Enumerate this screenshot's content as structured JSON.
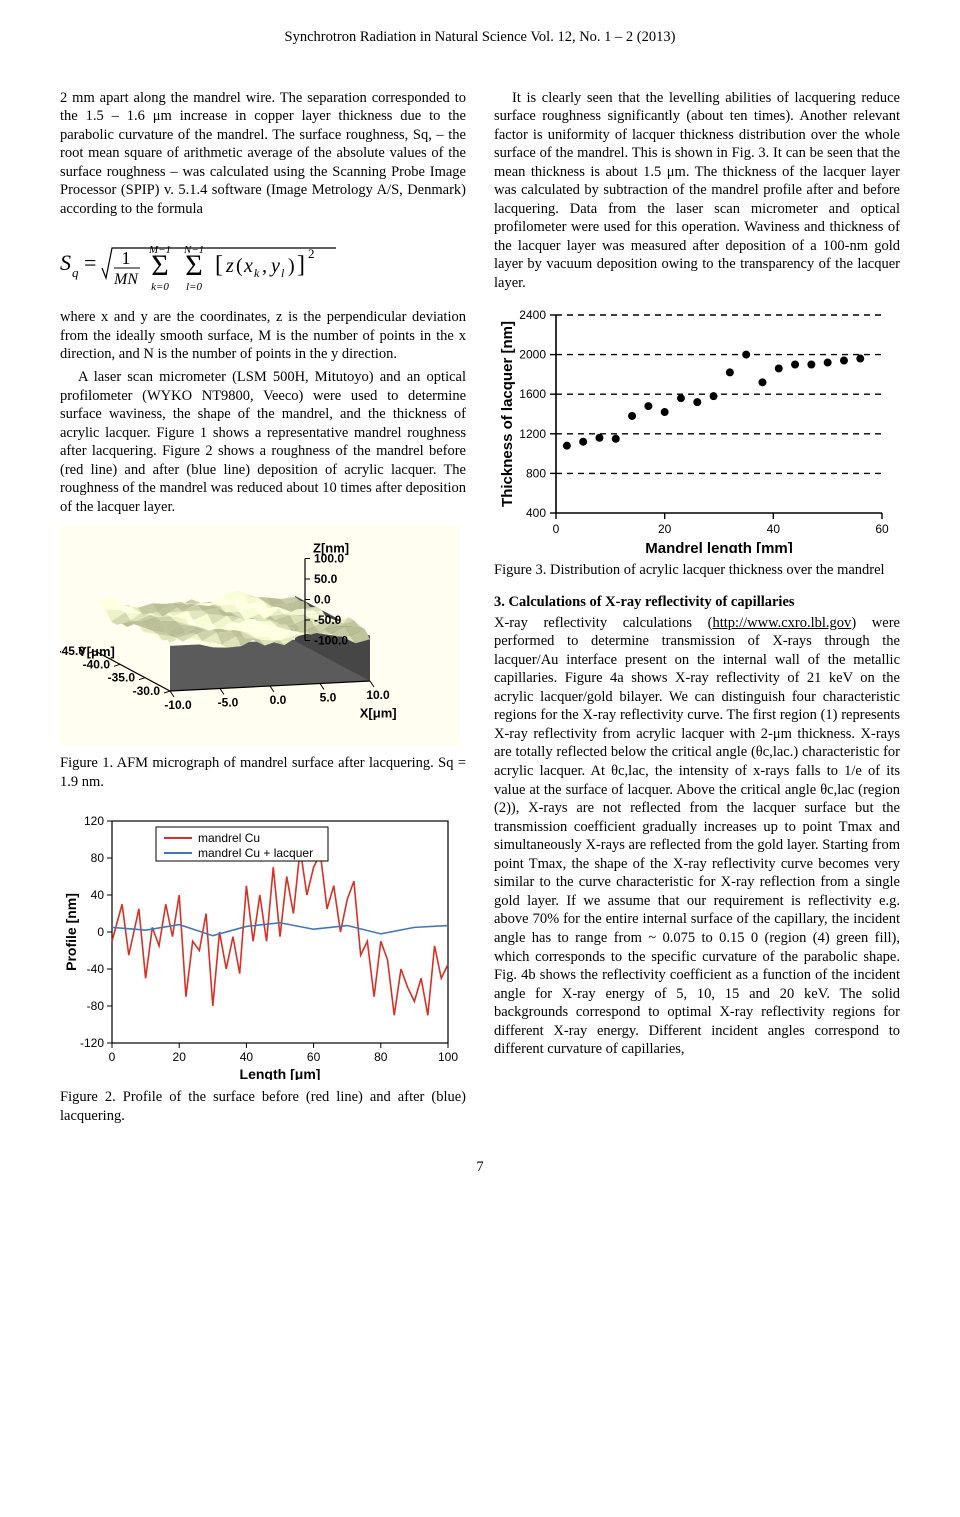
{
  "header": "Synchrotron Radiation in Natural Science Vol. 12, No. 1 – 2 (2013)",
  "page_number": "7",
  "left": {
    "p1": "2 mm apart along the mandrel wire. The separation corresponded to the 1.5 – 1.6 μm increase in copper layer thickness due to the parabolic curvature of the mandrel. The surface roughness, Sq, – the root mean square of arithmetic average of the absolute values of the surface roughness – was calculated using the Scanning Probe Image Processor (SPIP) v. 5.1.4 software (Image Metrology A/S, Denmark) according to the formula",
    "p2": "where x and y are the coordinates, z is the perpendicular deviation from the ideally smooth surface, M is the number of points in the x direction, and N is the number of points in the y direction.",
    "p3": "A laser scan micrometer (LSM 500H, Mitutoyo) and an optical profilometer (WYKO NT9800, Veeco) were used to determine surface waviness, the shape of the mandrel, and the thickness of acrylic lacquer. Figure 1 shows a representative mandrel roughness after lacquering. Figure 2 shows a roughness of the mandrel before (red line) and after (blue line) deposition of acrylic lacquer. The roughness of the mandrel was reduced about 10 times after deposition of the lacquer layer.",
    "cap1": "Figure 1. AFM micrograph of mandrel surface after lacquering. Sq = 1.9 nm.",
    "cap2": "Figure 2. Profile of the surface before (red line) and after (blue) lacquering.",
    "fig1": {
      "z_axis": [
        "100.0",
        "50.0",
        "0.0",
        "-50.0",
        "-100.0"
      ],
      "x_axis": [
        "-10.0",
        "-5.0",
        "0.0",
        "5.0",
        "10.0"
      ],
      "y_axis": [
        "-30.0",
        "-35.0",
        "-40.0",
        "-45.0"
      ],
      "z_label": "Z[nm]",
      "x_label": "X[μm]",
      "y_label": "Y[μm]"
    },
    "fig2": {
      "type": "line",
      "legend": [
        "mandrel Cu",
        "mandrel Cu + lacquer"
      ],
      "colors": [
        "#d73027",
        "#4575b4"
      ],
      "xlabel": "Length [μm]",
      "ylabel": "Profile [nm]",
      "xlim": [
        0,
        100
      ],
      "xticks": [
        0,
        20,
        40,
        60,
        80,
        100
      ],
      "ylim": [
        -120,
        120
      ],
      "yticks": [
        -120,
        -80,
        -40,
        0,
        40,
        80,
        120
      ],
      "cu_data": [
        [
          0,
          -10
        ],
        [
          3,
          30
        ],
        [
          5,
          -25
        ],
        [
          8,
          25
        ],
        [
          10,
          -50
        ],
        [
          12,
          5
        ],
        [
          14,
          -15
        ],
        [
          16,
          30
        ],
        [
          18,
          -5
        ],
        [
          20,
          40
        ],
        [
          22,
          -70
        ],
        [
          24,
          -10
        ],
        [
          26,
          -20
        ],
        [
          28,
          20
        ],
        [
          30,
          -80
        ],
        [
          32,
          0
        ],
        [
          34,
          -40
        ],
        [
          36,
          -5
        ],
        [
          38,
          -45
        ],
        [
          40,
          50
        ],
        [
          42,
          -10
        ],
        [
          44,
          40
        ],
        [
          46,
          -10
        ],
        [
          48,
          70
        ],
        [
          50,
          -5
        ],
        [
          52,
          60
        ],
        [
          54,
          20
        ],
        [
          56,
          90
        ],
        [
          58,
          40
        ],
        [
          60,
          70
        ],
        [
          62,
          85
        ],
        [
          64,
          25
        ],
        [
          66,
          50
        ],
        [
          68,
          0
        ],
        [
          70,
          35
        ],
        [
          72,
          55
        ],
        [
          74,
          -25
        ],
        [
          76,
          -10
        ],
        [
          78,
          -70
        ],
        [
          80,
          -10
        ],
        [
          82,
          -30
        ],
        [
          84,
          -90
        ],
        [
          86,
          -40
        ],
        [
          88,
          -60
        ],
        [
          90,
          -75
        ],
        [
          92,
          -50
        ],
        [
          94,
          -90
        ],
        [
          96,
          -15
        ],
        [
          98,
          -50
        ],
        [
          100,
          -35
        ]
      ],
      "lac_data": [
        [
          0,
          5
        ],
        [
          10,
          2
        ],
        [
          20,
          8
        ],
        [
          30,
          -4
        ],
        [
          40,
          6
        ],
        [
          50,
          10
        ],
        [
          60,
          3
        ],
        [
          70,
          7
        ],
        [
          80,
          -2
        ],
        [
          90,
          5
        ],
        [
          100,
          7
        ]
      ]
    }
  },
  "right": {
    "p1": "It is clearly seen that the levelling abilities of lacquering reduce surface roughness significantly (about ten times). Another relevant factor is uniformity of lacquer thickness distribution over the whole surface of the mandrel. This is shown in Fig. 3. It can be seen that the mean thickness is about 1.5 μm. The thickness of the lacquer layer was calculated by subtraction of the mandrel profile after and before lacquering. Data from the laser scan micrometer and optical profilometer were used for this operation. Waviness and thickness of the lacquer layer was measured after deposition of a 100-nm gold layer by vacuum deposition owing to the transparency of the lacquer layer.",
    "cap3": "Figure 3. Distribution of acrylic lacquer thickness over the mandrel",
    "section": "3. Calculations of X-ray reflectivity of capillaries",
    "p2a": "X-ray reflectivity calculations (",
    "p2link": "http://www.cxro.lbl.gov",
    "p2b": ") were performed to determine transmission of X-rays through the lacquer/Au interface present on the internal wall of the metallic capillaries. Figure 4a shows X-ray reflectivity of 21 keV on the acrylic lacquer/gold bilayer. We can distinguish four characteristic regions for the X-ray reflectivity curve. The first region (1) represents X-ray reflectivity from acrylic lacquer with 2-μm thickness. X-rays are totally reflected below the critical angle (θc,lac.) characteristic for acrylic lacquer. At θc,lac, the intensity of x-rays falls to 1/e of its value at the surface of lacquer. Above the critical angle θc,lac (region (2)), X-rays are not reflected from the lacquer surface but the transmission coefficient gradually increases up to point Tmax and simultaneously X-rays are reflected from the gold layer. Starting from point Tmax, the shape of the X-ray reflectivity curve becomes very similar to the curve characteristic for X-ray reflection from a single gold layer. If we assume that our requirement is reflectivity e.g. above 70% for the entire internal surface of the capillary, the incident angle has to range from ~ 0.075 to 0.15 0 (region (4) green fill), which corresponds to the specific curvature of the parabolic shape. Fig. 4b shows the reflectivity coefficient as a function of the incident angle for X-ray energy of 5, 10, 15 and 20 keV. The solid backgrounds correspond to optimal X-ray reflectivity regions for different X-ray energy. Different incident angles correspond to different curvature of capillaries,",
    "fig3": {
      "type": "scatter",
      "xlabel": "Mandrel length [mm]",
      "ylabel": "Thickness of lacquer [nm]",
      "xlim": [
        0,
        60
      ],
      "xticks": [
        0,
        20,
        40,
        60
      ],
      "ylim": [
        400,
        2400
      ],
      "yticks": [
        400,
        800,
        1200,
        1600,
        2000,
        2400
      ],
      "hlines": [
        800,
        1200,
        1600,
        2000,
        2400
      ],
      "points": [
        [
          2,
          1080
        ],
        [
          5,
          1120
        ],
        [
          8,
          1160
        ],
        [
          11,
          1150
        ],
        [
          14,
          1380
        ],
        [
          17,
          1480
        ],
        [
          20,
          1420
        ],
        [
          23,
          1560
        ],
        [
          26,
          1520
        ],
        [
          29,
          1580
        ],
        [
          32,
          1820
        ],
        [
          35,
          2000
        ],
        [
          38,
          1720
        ],
        [
          41,
          1860
        ],
        [
          44,
          1900
        ],
        [
          47,
          1900
        ],
        [
          50,
          1920
        ],
        [
          53,
          1940
        ],
        [
          56,
          1960
        ]
      ],
      "point_color": "#000000",
      "point_size": 4,
      "line_dash": "6,5",
      "axis_color": "#000000",
      "label_fontsize": 13,
      "tick_fontsize": 12
    }
  }
}
